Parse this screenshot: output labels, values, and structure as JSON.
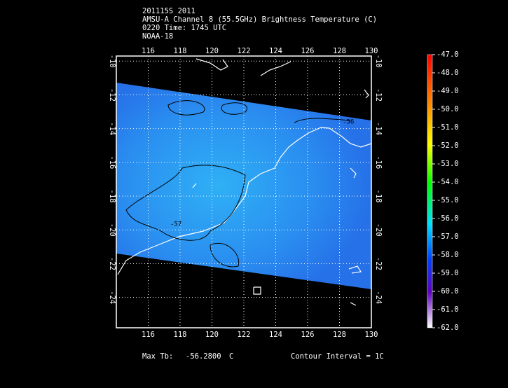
{
  "map": {
    "title_lines": [
      "201115S 2011",
      "AMSU-A Channel 8 (55.5GHz) Brightness Temperature (C)",
      "0220 Time: 1745 UTC",
      "NOAA-18"
    ],
    "xlim": [
      114,
      130
    ],
    "xticks": [
      116,
      118,
      120,
      122,
      124,
      126,
      128,
      130
    ],
    "ylim": [
      -9.7,
      -25.8
    ],
    "yticks": [
      -10,
      -12,
      -14,
      -16,
      -18,
      -20,
      -22,
      -24
    ],
    "contour_labels": [
      "-56",
      "-57"
    ],
    "colorbar": {
      "lim": [
        -47,
        -62
      ],
      "ticks": [
        {
          "value": -47,
          "label": "-47.0"
        },
        {
          "value": -48,
          "label": "-48.0"
        },
        {
          "value": -49,
          "label": "-49.0"
        },
        {
          "value": -50,
          "label": "-50.0"
        },
        {
          "value": -51,
          "label": "-51.0"
        },
        {
          "value": -52,
          "label": "-52.0"
        },
        {
          "value": -53,
          "label": "-53.0"
        },
        {
          "value": -54,
          "label": "-54.0"
        },
        {
          "value": -55,
          "label": "-55.0"
        },
        {
          "value": -56,
          "label": "-56.0"
        },
        {
          "value": -57,
          "label": "-57.0"
        },
        {
          "value": -58,
          "label": "-58.0"
        },
        {
          "value": -59,
          "label": "-59.0"
        },
        {
          "value": -60,
          "label": "-60.0"
        },
        {
          "value": -61,
          "label": "-61.0"
        },
        {
          "value": -62,
          "label": "-62.0"
        }
      ]
    },
    "footer": {
      "max_label": "Max Tb:",
      "max_value": "-56.2800",
      "max_unit": "C",
      "contour_interval": "Contour Interval = 1C"
    }
  }
}
